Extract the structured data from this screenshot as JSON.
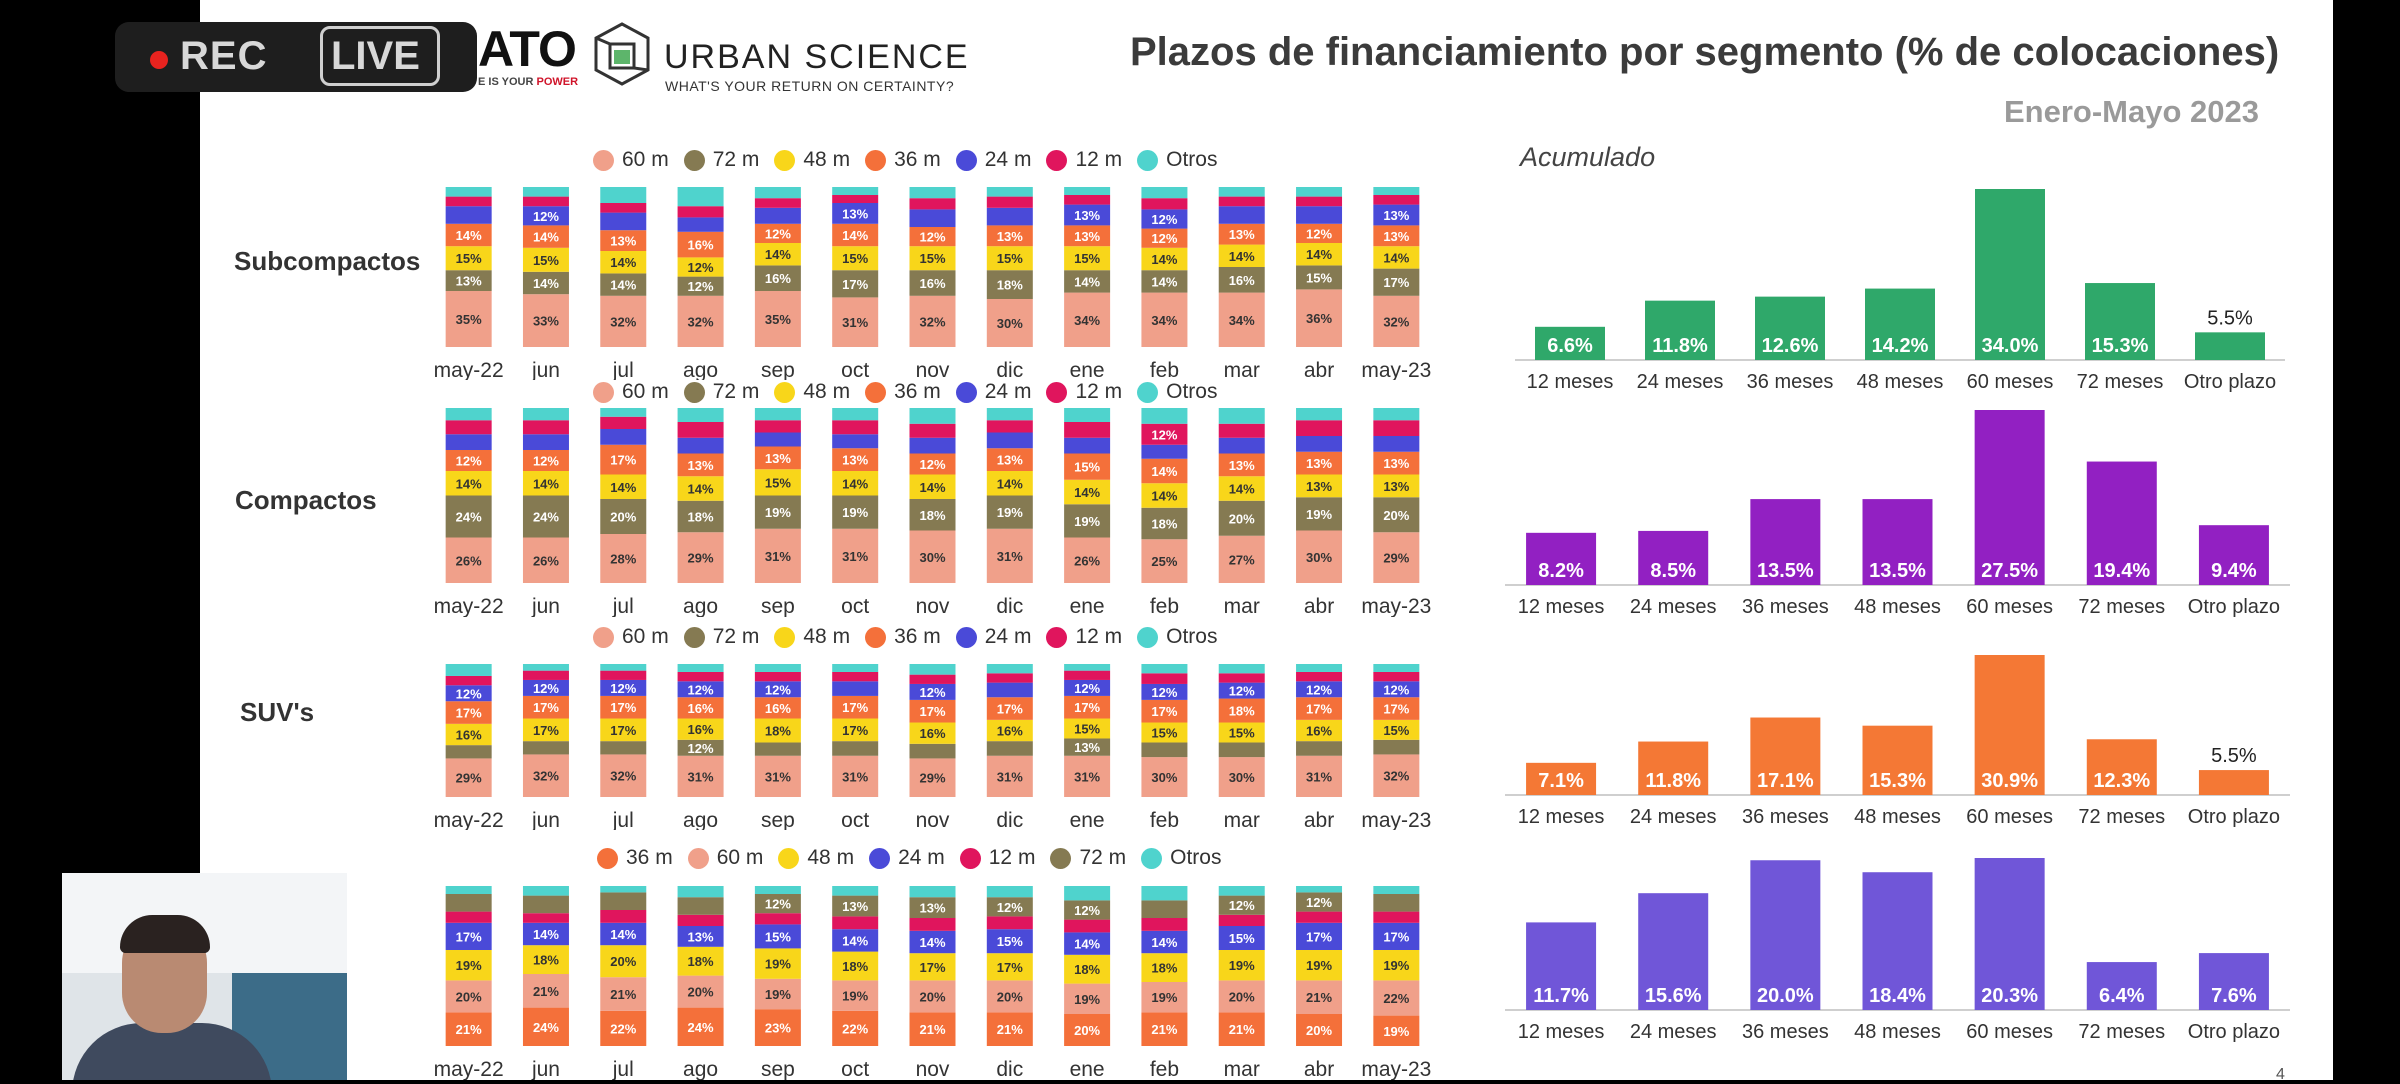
{
  "recording": {
    "rec_label": "REC",
    "live_label": "LIVE"
  },
  "branding": {
    "partner_logo_text": "ATO",
    "partner_tagline_prefix": "E IS YOUR ",
    "partner_tagline_power": "POWER",
    "company_name": "URBAN SCIENCE",
    "company_tagline": "WHAT'S YOUR RETURN ON CERTAINTY?"
  },
  "slide": {
    "title": "Plazos de financiamiento por segmento (% de colocaciones)",
    "subtitle": "Enero-Mayo 2023",
    "cumulative_label": "Acumulado",
    "page_number": "4"
  },
  "colors": {
    "60 m": "#f0a08a",
    "72 m": "#857a52",
    "48 m": "#f8d61a",
    "36 m": "#f4703a",
    "24 m": "#4a4ad8",
    "12 m": "#e0155d",
    "Otros": "#4fd3cd",
    "bar_subcompactos": "#2fa86a",
    "bar_compactos": "#9220c2",
    "bar_suvs": "#f47835",
    "bar_fourth": "#7056d8"
  },
  "chart_data": [
    {
      "type": "bar",
      "stacked": true,
      "segment_label": "Subcompactos",
      "categories": [
        "may-22",
        "jun",
        "jul",
        "ago",
        "sep",
        "oct",
        "nov",
        "dic",
        "ene",
        "feb",
        "mar",
        "abr",
        "may-23"
      ],
      "legend": [
        "60 m",
        "72 m",
        "48 m",
        "36 m",
        "24 m",
        "12 m",
        "Otros"
      ],
      "series": [
        {
          "name": "60 m",
          "values": [
            35,
            33,
            32,
            32,
            35,
            31,
            32,
            30,
            34,
            34,
            34,
            36,
            32
          ]
        },
        {
          "name": "72 m",
          "values": [
            13,
            14,
            14,
            12,
            16,
            17,
            16,
            18,
            14,
            14,
            16,
            15,
            17
          ]
        },
        {
          "name": "48 m",
          "values": [
            15,
            15,
            14,
            12,
            14,
            15,
            15,
            15,
            15,
            14,
            14,
            14,
            14
          ]
        },
        {
          "name": "36 m",
          "values": [
            14,
            14,
            13,
            16,
            12,
            14,
            12,
            13,
            13,
            12,
            13,
            12,
            13
          ]
        },
        {
          "name": "24 m",
          "values": [
            11,
            12,
            11,
            9,
            10,
            13,
            11,
            11,
            13,
            12,
            11,
            11,
            13
          ]
        },
        {
          "name": "12 m",
          "values": [
            6,
            6,
            6,
            7,
            6,
            5,
            7,
            7,
            6,
            7,
            6,
            6,
            6
          ]
        },
        {
          "name": "Otros",
          "values": [
            6,
            6,
            10,
            12,
            7,
            5,
            7,
            6,
            5,
            7,
            6,
            6,
            5
          ]
        }
      ],
      "ylim": [
        0,
        100
      ]
    },
    {
      "type": "bar",
      "stacked": true,
      "segment_label": "Compactos",
      "categories": [
        "may-22",
        "jun",
        "jul",
        "ago",
        "sep",
        "oct",
        "nov",
        "dic",
        "ene",
        "feb",
        "mar",
        "abr",
        "may-23"
      ],
      "legend": [
        "60 m",
        "72 m",
        "48 m",
        "36 m",
        "24 m",
        "12 m",
        "Otros"
      ],
      "series": [
        {
          "name": "60 m",
          "values": [
            26,
            26,
            28,
            29,
            31,
            31,
            30,
            31,
            26,
            25,
            27,
            30,
            29
          ]
        },
        {
          "name": "72 m",
          "values": [
            24,
            24,
            20,
            18,
            19,
            19,
            18,
            19,
            19,
            18,
            20,
            19,
            20
          ]
        },
        {
          "name": "48 m",
          "values": [
            14,
            14,
            14,
            14,
            15,
            14,
            14,
            14,
            14,
            14,
            14,
            13,
            13
          ]
        },
        {
          "name": "36 m",
          "values": [
            12,
            12,
            17,
            13,
            13,
            13,
            12,
            13,
            15,
            14,
            13,
            13,
            13
          ]
        },
        {
          "name": "24 m",
          "values": [
            9,
            9,
            9,
            9,
            8,
            8,
            9,
            9,
            9,
            8,
            9,
            9,
            9
          ]
        },
        {
          "name": "12 m",
          "values": [
            8,
            8,
            7,
            9,
            7,
            8,
            8,
            7,
            9,
            12,
            8,
            9,
            9
          ]
        },
        {
          "name": "Otros",
          "values": [
            7,
            7,
            5,
            8,
            7,
            7,
            9,
            7,
            8,
            9,
            9,
            7,
            7
          ]
        }
      ],
      "ylim": [
        0,
        100
      ]
    },
    {
      "type": "bar",
      "stacked": true,
      "segment_label": "SUV's",
      "categories": [
        "may-22",
        "jun",
        "jul",
        "ago",
        "sep",
        "oct",
        "nov",
        "dic",
        "ene",
        "feb",
        "mar",
        "abr",
        "may-23"
      ],
      "legend": [
        "60 m",
        "72 m",
        "48 m",
        "36 m",
        "24 m",
        "12 m",
        "Otros"
      ],
      "series": [
        {
          "name": "60 m",
          "values": [
            29,
            32,
            32,
            31,
            31,
            31,
            29,
            31,
            31,
            30,
            30,
            31,
            32
          ]
        },
        {
          "name": "72 m",
          "values": [
            10,
            10,
            10,
            12,
            10,
            11,
            11,
            11,
            13,
            11,
            11,
            11,
            11
          ]
        },
        {
          "name": "48 m",
          "values": [
            16,
            17,
            17,
            16,
            18,
            17,
            16,
            16,
            15,
            15,
            15,
            16,
            15
          ]
        },
        {
          "name": "36 m",
          "values": [
            17,
            17,
            17,
            16,
            16,
            17,
            17,
            17,
            17,
            17,
            18,
            17,
            17
          ]
        },
        {
          "name": "24 m",
          "values": [
            12,
            12,
            12,
            12,
            12,
            11,
            12,
            11,
            12,
            12,
            12,
            12,
            12
          ]
        },
        {
          "name": "12 m",
          "values": [
            7,
            7,
            7,
            7,
            7,
            7,
            7,
            7,
            7,
            8,
            7,
            7,
            7
          ]
        },
        {
          "name": "Otros",
          "values": [
            9,
            5,
            5,
            6,
            6,
            6,
            8,
            7,
            5,
            7,
            7,
            6,
            6
          ]
        }
      ],
      "ylim": [
        0,
        100
      ]
    },
    {
      "type": "bar",
      "stacked": true,
      "segment_label": "",
      "categories": [
        "may-22",
        "jun",
        "jul",
        "ago",
        "sep",
        "oct",
        "nov",
        "dic",
        "ene",
        "feb",
        "mar",
        "abr",
        "may-23"
      ],
      "legend": [
        "36 m",
        "60 m",
        "48 m",
        "24 m",
        "12 m",
        "72 m",
        "Otros"
      ],
      "series": [
        {
          "name": "36 m",
          "values": [
            21,
            24,
            22,
            24,
            23,
            22,
            21,
            21,
            20,
            21,
            21,
            20,
            19
          ]
        },
        {
          "name": "60 m",
          "values": [
            20,
            21,
            21,
            20,
            19,
            19,
            20,
            20,
            19,
            19,
            20,
            21,
            22
          ]
        },
        {
          "name": "48 m",
          "values": [
            19,
            18,
            20,
            18,
            19,
            18,
            17,
            17,
            18,
            18,
            19,
            19,
            19
          ]
        },
        {
          "name": "24 m",
          "values": [
            17,
            14,
            14,
            13,
            15,
            14,
            14,
            15,
            14,
            14,
            15,
            17,
            17
          ]
        },
        {
          "name": "12 m",
          "values": [
            7,
            6,
            8,
            7,
            7,
            8,
            8,
            8,
            8,
            8,
            7,
            7,
            7
          ]
        },
        {
          "name": "72 m",
          "values": [
            11,
            11,
            11,
            11,
            12,
            13,
            13,
            12,
            12,
            11,
            12,
            12,
            11
          ]
        },
        {
          "name": "Otros",
          "values": [
            5,
            6,
            4,
            7,
            5,
            6,
            7,
            7,
            9,
            9,
            6,
            4,
            5
          ]
        }
      ],
      "ylim": [
        0,
        100
      ]
    },
    {
      "type": "bar",
      "title": "Acumulado",
      "segment_label": "Subcompactos",
      "categories": [
        "12 meses",
        "24 meses",
        "36 meses",
        "48 meses",
        "60 meses",
        "72 meses",
        "Otro plazo"
      ],
      "values": [
        6.6,
        11.8,
        12.6,
        14.2,
        34.0,
        15.3,
        5.5
      ],
      "data_labels": [
        "6.6%",
        "11.8%",
        "12.6%",
        "14.2%",
        "34.0%",
        "15.3%",
        "5.5%"
      ],
      "ylim": [
        0,
        34.0
      ]
    },
    {
      "type": "bar",
      "segment_label": "Compactos",
      "categories": [
        "12 meses",
        "24 meses",
        "36 meses",
        "48 meses",
        "60 meses",
        "72 meses",
        "Otro plazo"
      ],
      "values": [
        8.2,
        8.5,
        13.5,
        13.5,
        27.5,
        19.4,
        9.4
      ],
      "data_labels": [
        "8.2%",
        "8.5%",
        "13.5%",
        "13.5%",
        "27.5%",
        "19.4%",
        "9.4%"
      ],
      "ylim": [
        0,
        27.5
      ]
    },
    {
      "type": "bar",
      "segment_label": "SUV's",
      "categories": [
        "12 meses",
        "24 meses",
        "36 meses",
        "48 meses",
        "60 meses",
        "72 meses",
        "Otro plazo"
      ],
      "values": [
        7.1,
        11.8,
        17.1,
        15.3,
        30.9,
        12.3,
        5.5
      ],
      "data_labels": [
        "7.1%",
        "11.8%",
        "17.1%",
        "15.3%",
        "30.9%",
        "12.3%",
        "5.5%"
      ],
      "ylim": [
        0,
        30.9
      ]
    },
    {
      "type": "bar",
      "segment_label": "",
      "categories": [
        "12 meses",
        "24 meses",
        "36 meses",
        "48 meses",
        "60 meses",
        "72 meses",
        "Otro plazo"
      ],
      "values": [
        11.7,
        15.6,
        20.0,
        18.4,
        20.3,
        6.4,
        7.6
      ],
      "data_labels": [
        "11.7%",
        "15.6%",
        "20.0%",
        "18.4%",
        "20.3%",
        "6.4%",
        "7.6%"
      ],
      "ylim": [
        0,
        20.3
      ]
    }
  ]
}
